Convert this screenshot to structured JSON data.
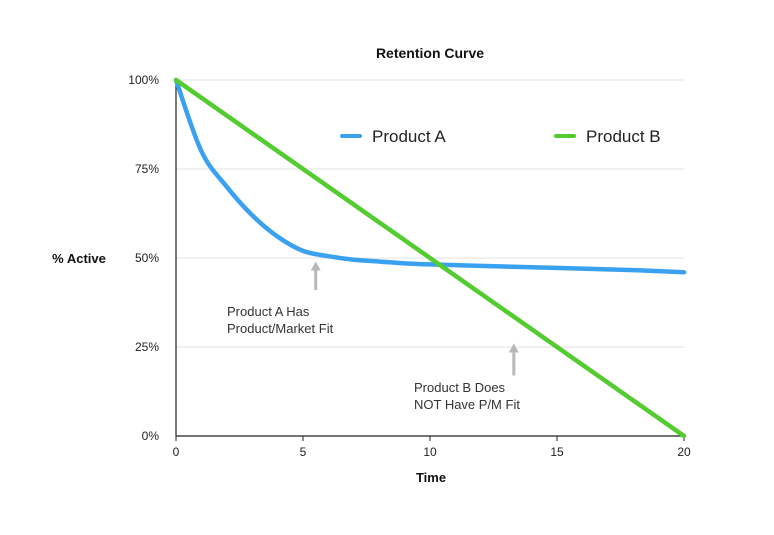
{
  "chart_data": {
    "type": "line",
    "title": "Retention Curve",
    "xlabel": "Time",
    "ylabel": "% Active",
    "xlim": [
      0,
      20
    ],
    "ylim": [
      0,
      100
    ],
    "x_ticks": [
      "0",
      "5",
      "10",
      "15",
      "20"
    ],
    "y_ticks": [
      "0%",
      "25%",
      "50%",
      "75%",
      "100%"
    ],
    "grid": "horizontal",
    "legend_position": "top-right",
    "series": [
      {
        "name": "Product A",
        "color": "#3aa0f0",
        "x": [
          0,
          1,
          2,
          3,
          4,
          5,
          6,
          7,
          8,
          9,
          10,
          12,
          14,
          16,
          18,
          20
        ],
        "y": [
          100,
          80,
          70,
          62,
          56,
          52,
          50.5,
          49.5,
          49,
          48.5,
          48.2,
          47.8,
          47.4,
          47,
          46.6,
          46
        ]
      },
      {
        "name": "Product B",
        "color": "#52cc2e",
        "x": [
          0,
          20
        ],
        "y": [
          100,
          0
        ]
      }
    ],
    "annotations": [
      {
        "lines": [
          "Product A Has",
          "Product/Market Fit"
        ],
        "arrow_x": 5.5,
        "arrow_y_top": 49,
        "arrow_y_bottom": 41
      },
      {
        "lines": [
          "Product B Does",
          "NOT Have P/M Fit"
        ],
        "arrow_x": 13.3,
        "arrow_y_top": 26,
        "arrow_y_bottom": 17
      }
    ]
  }
}
